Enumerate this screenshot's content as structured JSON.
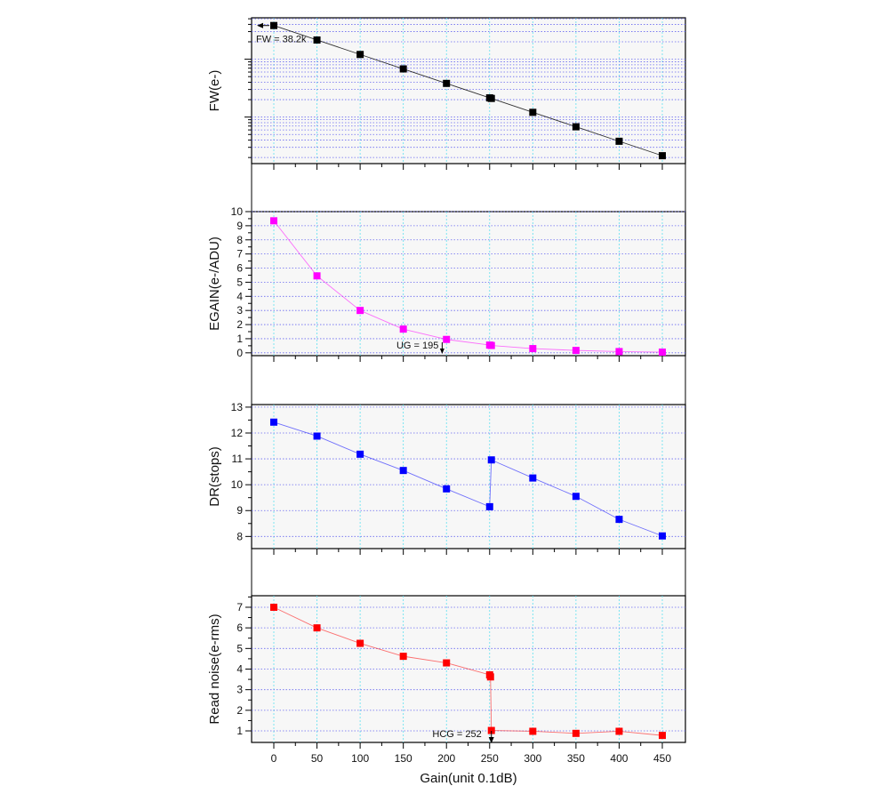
{
  "chart_data": [
    {
      "type": "line",
      "ylabel": "FW(e-)",
      "yscale": "log",
      "ylim": [
        157,
        52000
      ],
      "x": [
        0,
        50,
        100,
        150,
        200,
        250,
        252,
        300,
        350,
        400,
        450
      ],
      "series": [
        {
          "name": "FW",
          "color": "#000000",
          "values": [
            38200,
            21480,
            12080,
            6793,
            3820,
            2148,
            2100,
            1208,
            679,
            382,
            215
          ]
        }
      ],
      "yticks": [],
      "annotation": {
        "text": "FW = 38.2k",
        "x": 0,
        "y": 38200,
        "arrow": "left"
      }
    },
    {
      "type": "line",
      "ylabel": "EGAIN(e-/ADU)",
      "ylim": [
        -0.2,
        10
      ],
      "x": [
        0,
        50,
        100,
        150,
        200,
        250,
        252,
        300,
        350,
        400,
        450
      ],
      "series": [
        {
          "name": "EGAIN",
          "color": "#ff00ff",
          "values": [
            9.35,
            5.45,
            3.0,
            1.68,
            0.95,
            0.55,
            0.52,
            0.3,
            0.17,
            0.09,
            0.05
          ]
        }
      ],
      "yticks": [
        "0",
        "1",
        "2",
        "3",
        "4",
        "5",
        "6",
        "7",
        "8",
        "9",
        "10"
      ],
      "annotation": {
        "text": "UG = 195",
        "x": 195,
        "y": 0,
        "arrow": "down"
      }
    },
    {
      "type": "line",
      "ylabel": "DR(stops)",
      "ylim": [
        7.53,
        13.1
      ],
      "x": [
        0,
        50,
        100,
        150,
        200,
        250,
        252,
        300,
        350,
        400,
        450
      ],
      "series": [
        {
          "name": "DR",
          "color": "#0000ff",
          "values": [
            12.42,
            11.88,
            11.18,
            10.55,
            9.84,
            9.15,
            10.96,
            10.26,
            9.55,
            8.66,
            8.02
          ]
        }
      ],
      "yticks": [
        "8",
        "9",
        "10",
        "11",
        "12",
        "13"
      ]
    },
    {
      "type": "line",
      "ylabel": "Read noise(e-rms)",
      "xlabel": "Gain(unit 0.1dB)",
      "ylim": [
        0.44,
        7.56
      ],
      "x": [
        0,
        50,
        100,
        150,
        200,
        250,
        251,
        252,
        300,
        350,
        400,
        450
      ],
      "series": [
        {
          "name": "Read noise",
          "color": "#ff0000",
          "values": [
            7.0,
            6.0,
            5.25,
            4.62,
            4.3,
            3.72,
            3.62,
            1.02,
            0.98,
            0.88,
            0.98,
            0.78
          ]
        }
      ],
      "yticks": [
        "1",
        "2",
        "3",
        "4",
        "5",
        "6",
        "7"
      ],
      "xticks": [
        "0",
        "50",
        "100",
        "150",
        "200",
        "250",
        "300",
        "350",
        "400",
        "450"
      ],
      "annotation": {
        "text": "HCG = 252",
        "x": 252,
        "y": 0.44,
        "arrow": "down"
      }
    }
  ],
  "xlim": [
    -25,
    475
  ]
}
